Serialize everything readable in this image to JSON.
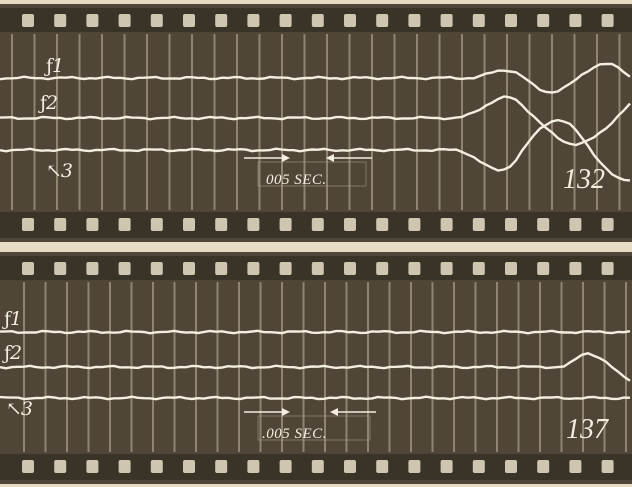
{
  "colors": {
    "paper": "#e7dcc3",
    "film": "#4f4637",
    "film_dark": "#3a3328",
    "perforation": "#cfc6b2",
    "trace": "#f3eee0",
    "timing_line": "#a49985"
  },
  "strips": [
    {
      "frame_number": "132",
      "trace_labels": [
        "1",
        "2",
        "3"
      ],
      "time_marker": "005 SEC."
    },
    {
      "frame_number": "137",
      "trace_labels": [
        "1",
        "2",
        "3"
      ],
      "time_marker": ".005 SEC."
    }
  ]
}
